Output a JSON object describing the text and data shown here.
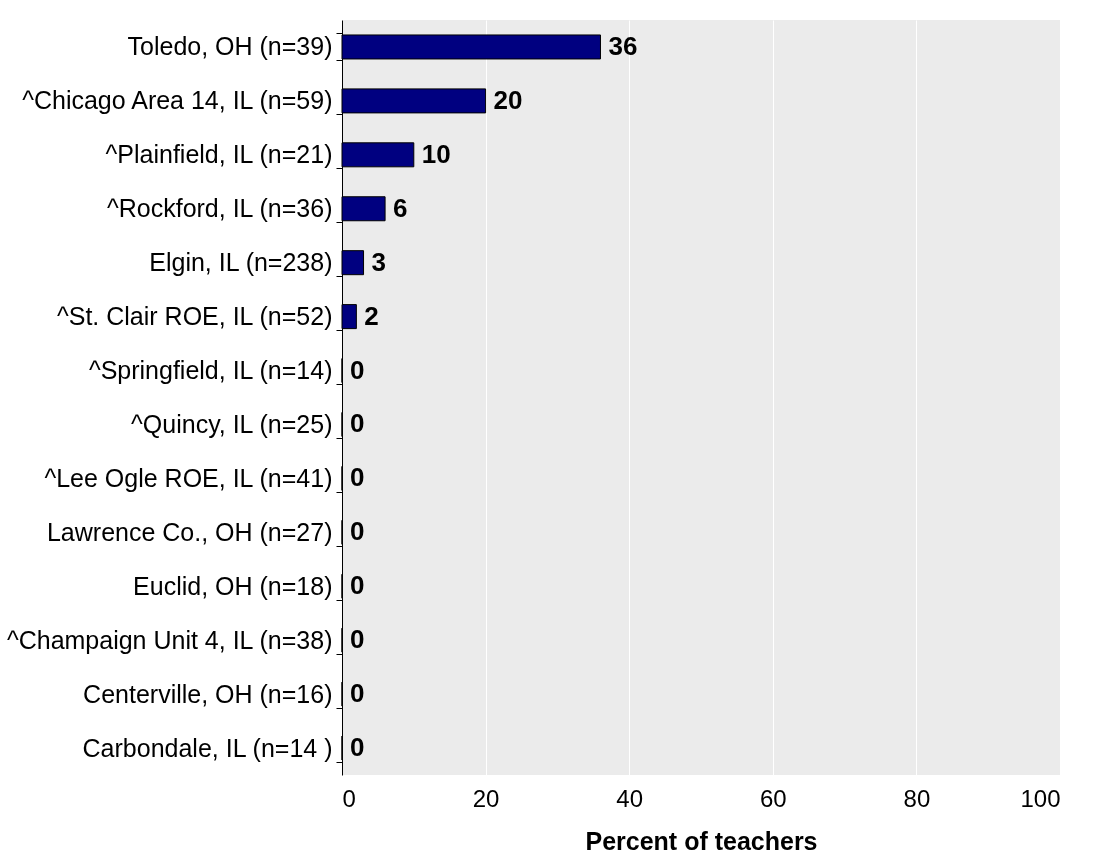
{
  "chart_data": {
    "type": "bar",
    "orientation": "horizontal",
    "xlabel": "Percent of teachers",
    "categories": [
      "Toledo, OH (n=39)",
      "^Chicago Area 14, IL (n=59)",
      "^Plainfield, IL (n=21)",
      "^Rockford, IL (n=36)",
      "Elgin, IL (n=238)",
      "^St. Clair ROE, IL (n=52)",
      "^Springfield, IL (n=14)",
      "^Quincy, IL (n=25)",
      "^Lee Ogle ROE, IL (n=41)",
      "Lawrence Co., OH (n=27)",
      "Euclid, OH (n=18)",
      "^Champaign Unit 4, IL (n=38)",
      "Centerville, OH (n=16)",
      "Carbondale, IL (n=14 )"
    ],
    "values": [
      36,
      20,
      10,
      6,
      3,
      2,
      0,
      0,
      0,
      0,
      0,
      0,
      0,
      0
    ],
    "color": "#000080",
    "xlim": [
      0,
      100
    ],
    "xticks": [
      0,
      20,
      40,
      60,
      80,
      100
    ],
    "grid": "x",
    "data_labels": true
  }
}
